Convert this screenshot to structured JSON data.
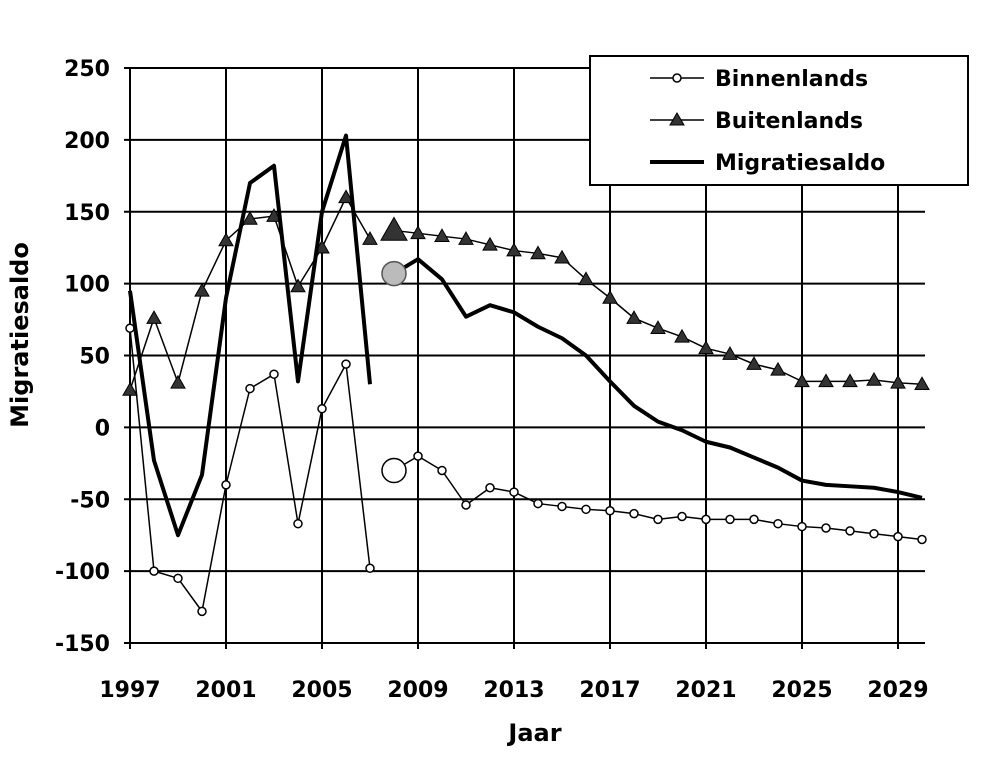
{
  "chart_data": {
    "type": "line",
    "title": "",
    "xlabel": "Jaar",
    "ylabel": "Migratiesaldo",
    "xlim": [
      1997,
      2030
    ],
    "ylim": [
      -150,
      250
    ],
    "x_ticks": [
      1997,
      2001,
      2005,
      2009,
      2013,
      2017,
      2021,
      2025,
      2029
    ],
    "y_ticks": [
      250,
      200,
      150,
      100,
      50,
      0,
      -50,
      -100,
      -150
    ],
    "grid": true,
    "legend_position": "top-right",
    "highlight_year": 2008,
    "x": [
      1997,
      1998,
      1999,
      2000,
      2001,
      2002,
      2003,
      2004,
      2005,
      2006,
      2007,
      2008,
      2009,
      2010,
      2011,
      2012,
      2013,
      2014,
      2015,
      2016,
      2017,
      2018,
      2019,
      2020,
      2021,
      2022,
      2023,
      2024,
      2025,
      2026,
      2027,
      2028,
      2029,
      2030
    ],
    "series": [
      {
        "name": "Binnenlands",
        "marker": "circle",
        "values": [
          69,
          -100,
          -105,
          -128,
          -40,
          27,
          37,
          -67,
          13,
          44,
          -98,
          -30,
          -20,
          -30,
          -54,
          -42,
          -45,
          -53,
          -55,
          -57,
          -58,
          -60,
          -64,
          -62,
          -64,
          -64,
          -64,
          -67,
          -69,
          -70,
          -72,
          -74,
          -76,
          -78
        ]
      },
      {
        "name": "Buitenlands",
        "marker": "triangle",
        "values": [
          26,
          76,
          31,
          95,
          130,
          145,
          147,
          98,
          125,
          160,
          131,
          137,
          135,
          133,
          131,
          127,
          123,
          121,
          118,
          103,
          90,
          76,
          69,
          63,
          55,
          51,
          44,
          40,
          32,
          32,
          32,
          33,
          31,
          30
        ]
      },
      {
        "name": "Migratiesaldo",
        "marker": "none",
        "values": [
          95,
          -23,
          -75,
          -33,
          90,
          170,
          182,
          32,
          150,
          203,
          30,
          107,
          117,
          103,
          77,
          85,
          80,
          70,
          62,
          50,
          32,
          15,
          4,
          -2,
          -10,
          -14,
          -21,
          -28,
          -37,
          -40,
          -41,
          -42,
          -45,
          -49
        ]
      }
    ]
  }
}
